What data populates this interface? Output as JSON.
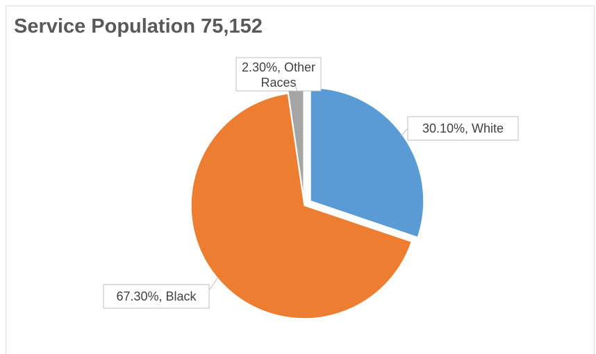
{
  "chart_data": {
    "type": "pie",
    "title": "Service Population 75,152",
    "slices": [
      {
        "category": "White",
        "value": 30.1,
        "label_line1": "30.10%, White",
        "label_line2": "",
        "color": "#5b9bd5"
      },
      {
        "category": "Black",
        "value": 67.3,
        "label_line1": "67.30%, Black",
        "label_line2": "",
        "color": "#ed7d31"
      },
      {
        "category": "Other Races",
        "value": 2.3,
        "label_line1": "2.30%, Other",
        "label_line2": "Races",
        "color": "#a5a5a5"
      }
    ],
    "legend": "none",
    "data_labels": "outside with callout boxes",
    "exploded": true
  }
}
